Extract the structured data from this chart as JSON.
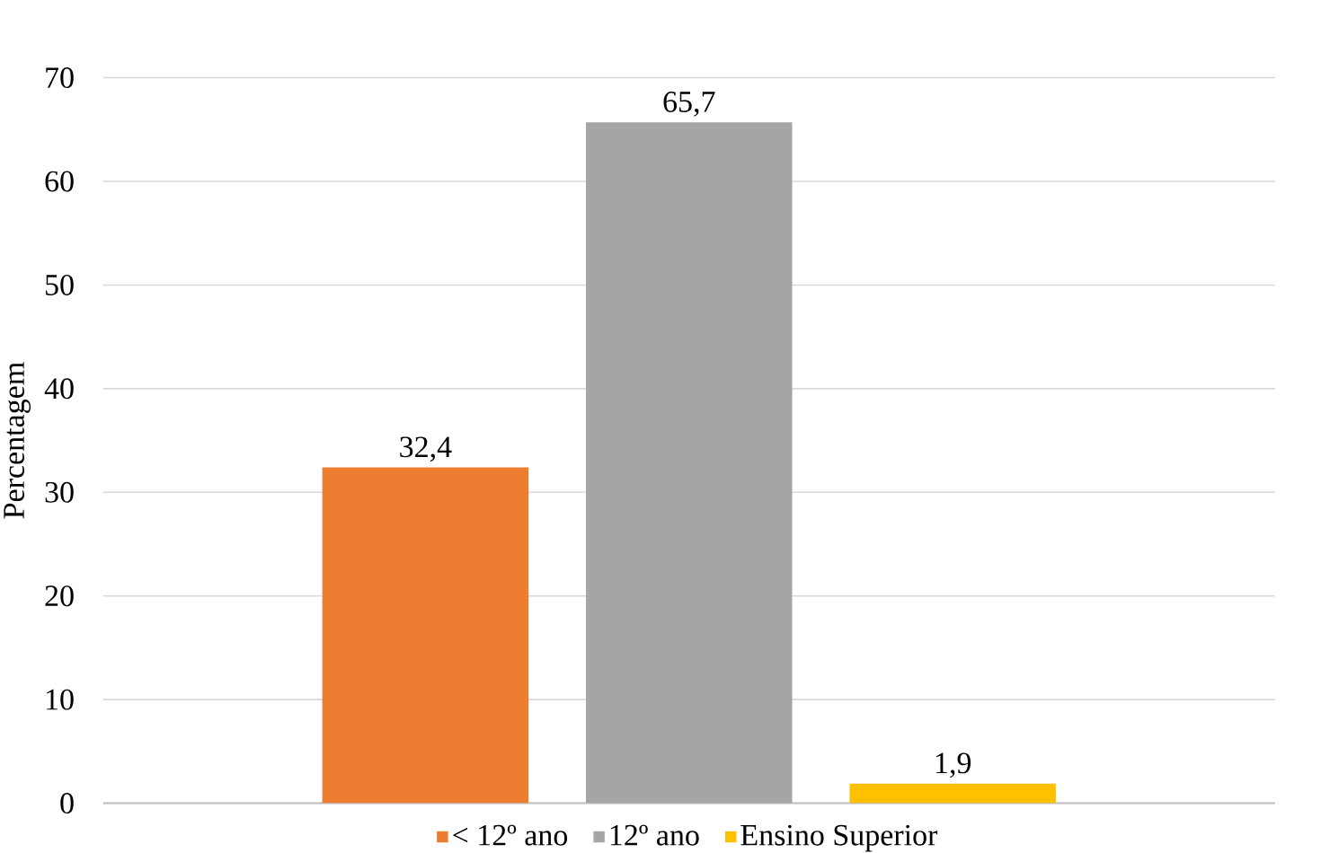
{
  "chart_data": {
    "type": "bar",
    "ylabel": "Percentagem",
    "categories": [
      null
    ],
    "series": [
      {
        "name": "< 12º ano",
        "color": "#ed7d31",
        "values": [
          32.4
        ],
        "value_labels": [
          "32,4"
        ]
      },
      {
        "name": "12º ano",
        "color": "#a5a5a5",
        "values": [
          65.7
        ],
        "value_labels": [
          "65,7"
        ]
      },
      {
        "name": "Ensino Superior",
        "color": "#ffc000",
        "values": [
          1.9
        ],
        "value_labels": [
          "1,9"
        ]
      }
    ],
    "ylim": [
      0,
      70
    ],
    "yticks": [
      0,
      10,
      20,
      30,
      40,
      50,
      60,
      70
    ],
    "grid": "y",
    "legend": "bottom"
  }
}
